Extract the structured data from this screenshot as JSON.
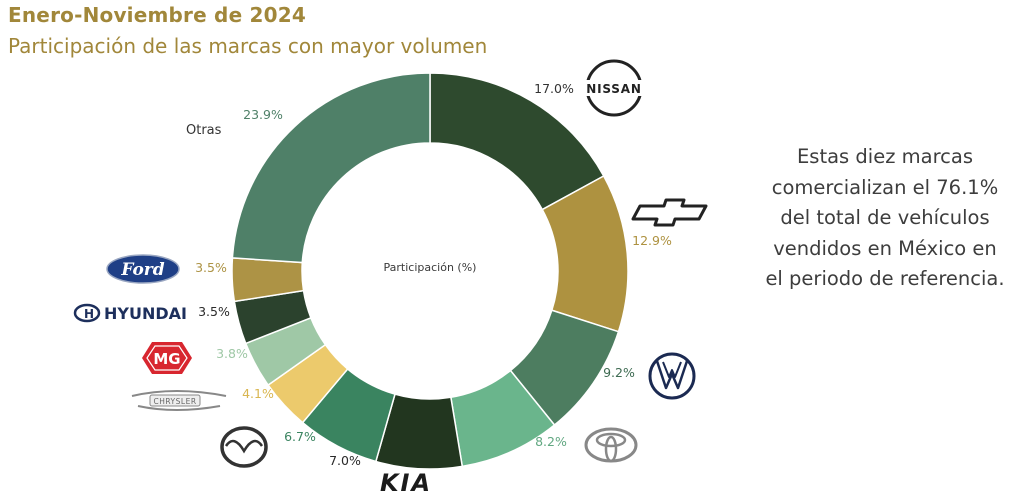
{
  "header": {
    "title": "Enero-Noviembre de 2024",
    "subtitle": "Participación de las marcas con mayor volumen"
  },
  "side_note": "Estas diez marcas comercializan el 76.1% del total de vehículos vendidos en México en el periodo de referencia.",
  "logos": {
    "nissan": "NISSAN",
    "ford": "Ford",
    "hyundai": "HYUNDAI",
    "mg": "MG",
    "chrysler": "CHRYSLER",
    "kia": "KIA"
  },
  "chart_data": {
    "type": "pie",
    "style": "donut",
    "center_label": "Participación (%)",
    "categories": [
      "Nissan",
      "Chevrolet",
      "Volkswagen",
      "Toyota",
      "Kia",
      "Mazda",
      "Chrysler",
      "MG",
      "Hyundai",
      "Ford",
      "Otras"
    ],
    "values": [
      17.0,
      12.9,
      9.2,
      8.2,
      7.0,
      6.7,
      4.1,
      3.8,
      3.5,
      3.5,
      23.9
    ],
    "labels": [
      "17.0%",
      "12.9%",
      "9.2%",
      "8.2%",
      "7.0%",
      "6.7%",
      "4.1%",
      "3.8%",
      "3.5%",
      "3.5%",
      "23.9%"
    ],
    "colors": [
      "#2e4a2e",
      "#ae9240",
      "#4d7d60",
      "#6ab58c",
      "#22361f",
      "#3a8460",
      "#ecca6c",
      "#9fc8a6",
      "#2b422d",
      "#ad9345",
      "#4f8068"
    ],
    "label_colors": [
      "#333333",
      "#ae9240",
      "#3e6b52",
      "#62a882",
      "#2a2a2a",
      "#3a8460",
      "#d9b650",
      "#9fc8a6",
      "#2b2b2b",
      "#ad9345",
      "#4f8068"
    ],
    "other_label": "Otras"
  }
}
